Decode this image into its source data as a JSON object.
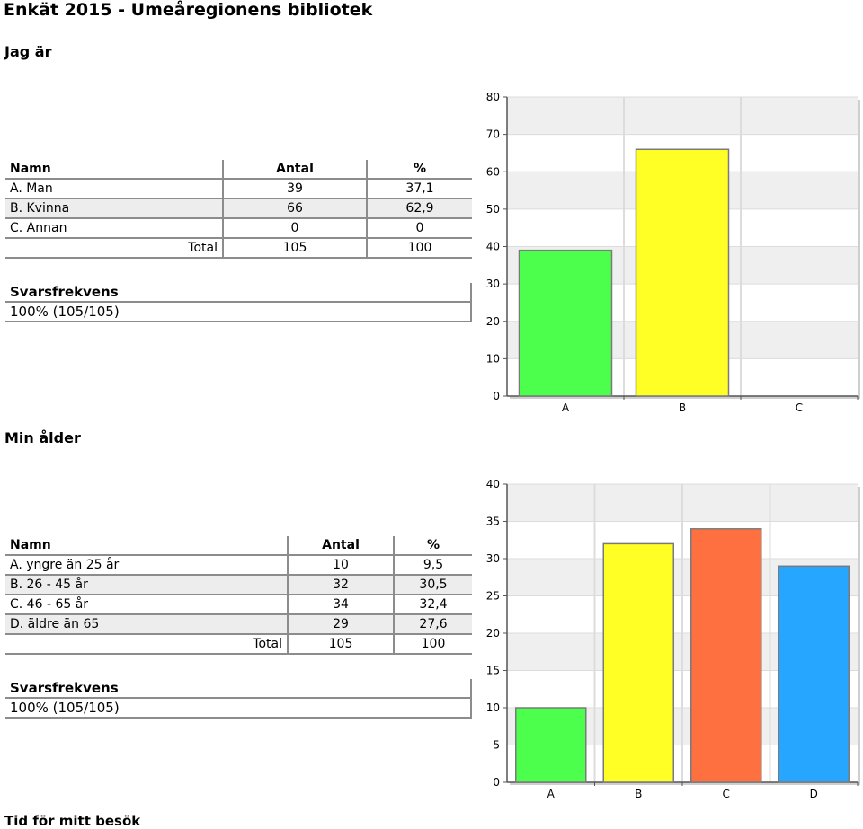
{
  "page": {
    "title": "Enkät 2015 - Umeåregionens bibliotek"
  },
  "questions": [
    {
      "heading": "Jag är",
      "table": {
        "headers": [
          "Namn",
          "Antal",
          "%"
        ],
        "rows": [
          [
            "A. Man",
            "39",
            "37,1"
          ],
          [
            "B. Kvinna",
            "66",
            "62,9"
          ],
          [
            "C. Annan",
            "0",
            "0"
          ]
        ],
        "total": [
          "Total",
          "105",
          "100"
        ]
      },
      "response_rate": {
        "label": "Svarsfrekvens",
        "value": "100% (105/105)"
      }
    },
    {
      "heading": "Min ålder",
      "table": {
        "headers": [
          "Namn",
          "Antal",
          "%"
        ],
        "rows": [
          [
            "A. yngre än 25 år",
            "10",
            "9,5"
          ],
          [
            "B. 26 - 45 år",
            "32",
            "30,5"
          ],
          [
            "C. 46 - 65 år",
            "34",
            "32,4"
          ],
          [
            "D. äldre än 65",
            "29",
            "27,6"
          ]
        ],
        "total": [
          "Total",
          "105",
          "100"
        ]
      },
      "response_rate": {
        "label": "Svarsfrekvens",
        "value": "100% (105/105)"
      }
    },
    {
      "heading": "Tid för mitt besök"
    }
  ],
  "chart_data": [
    {
      "type": "bar",
      "categories": [
        "A",
        "B",
        "C"
      ],
      "values": [
        39,
        66,
        0
      ],
      "colors": [
        "#4dff4d",
        "#ffff26",
        "#ff7040"
      ],
      "ylim": [
        0,
        80
      ],
      "yticks": [
        0,
        10,
        20,
        30,
        40,
        50,
        60,
        70,
        80
      ],
      "grid": true
    },
    {
      "type": "bar",
      "categories": [
        "A",
        "B",
        "C",
        "D"
      ],
      "values": [
        10,
        32,
        34,
        29
      ],
      "colors": [
        "#4dff4d",
        "#ffff26",
        "#ff7040",
        "#26a6ff"
      ],
      "ylim": [
        0,
        40
      ],
      "yticks": [
        0,
        5,
        10,
        15,
        20,
        25,
        30,
        35,
        40
      ],
      "grid": true
    }
  ]
}
